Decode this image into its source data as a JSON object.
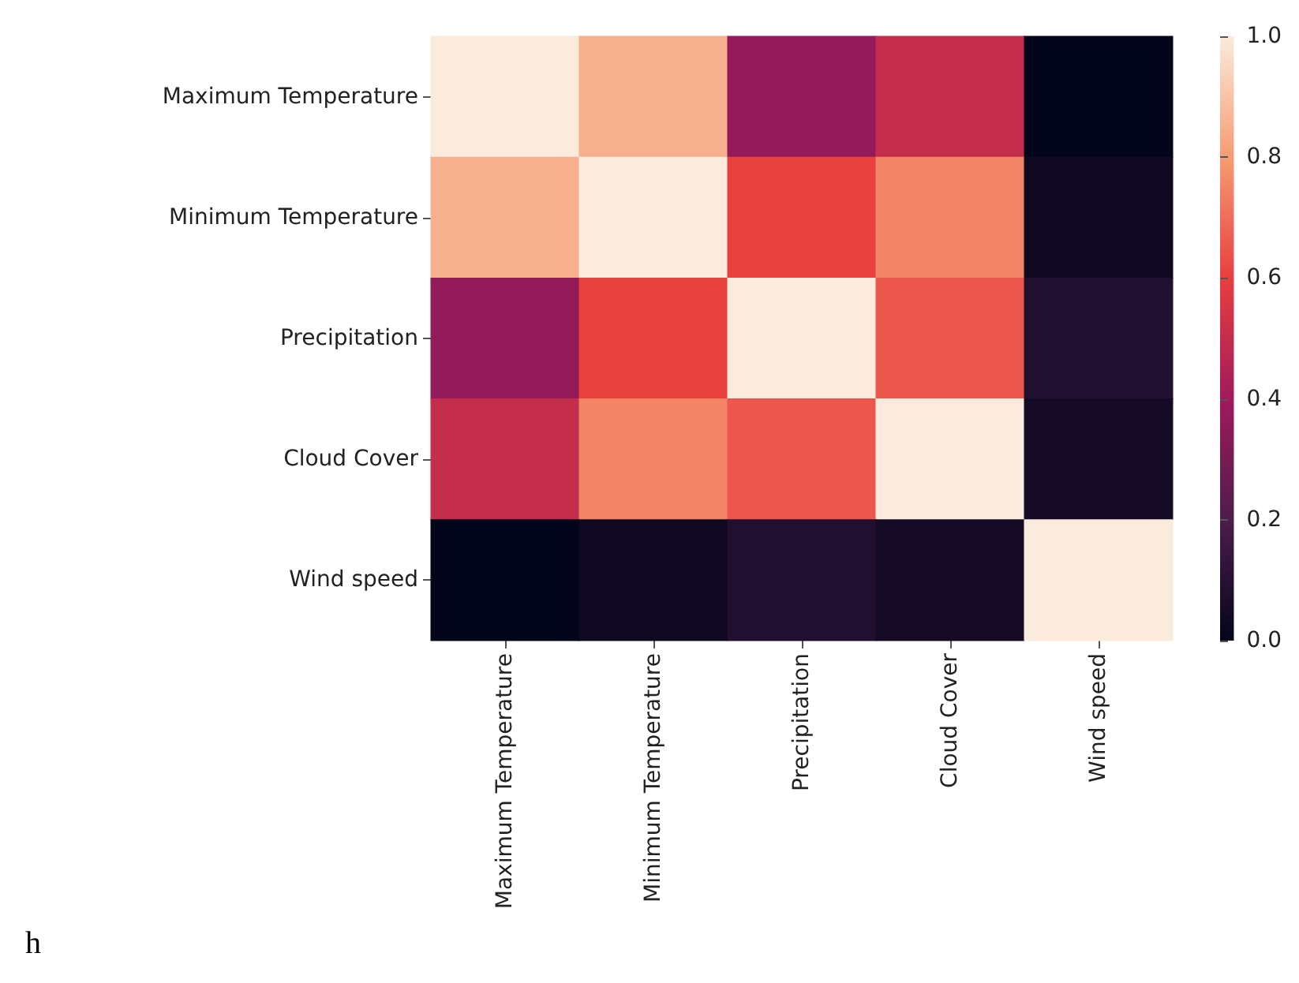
{
  "chart_data": {
    "type": "heatmap",
    "categories": [
      "Maximum Temperature",
      "Minimum Temperature",
      "Precipitation",
      "Cloud Cover",
      "Wind speed"
    ],
    "y_categories": [
      "Maximum Temperature",
      "Minimum Temperature",
      "Precipitation",
      "Cloud Cover",
      "Wind speed"
    ],
    "cells": [
      [
        1.0,
        0.85,
        0.37,
        0.5,
        0.0
      ],
      [
        0.85,
        1.0,
        0.6,
        0.75,
        0.03
      ],
      [
        0.37,
        0.6,
        1.0,
        0.65,
        0.08
      ],
      [
        0.5,
        0.75,
        0.65,
        1.0,
        0.05
      ],
      [
        0.0,
        0.03,
        0.08,
        0.05,
        1.0
      ]
    ],
    "clim": [
      0.0,
      1.0
    ],
    "cticks": [
      {
        "value": 0,
        "label": "0.0"
      },
      {
        "value": 0.2,
        "label": "0.2"
      },
      {
        "value": 0.4,
        "label": "0.4"
      },
      {
        "value": 0.6,
        "label": "0.6"
      },
      {
        "value": 0.8,
        "label": "0.8"
      },
      {
        "value": 1,
        "label": "1.0"
      }
    ],
    "annotations": [
      "h"
    ]
  }
}
